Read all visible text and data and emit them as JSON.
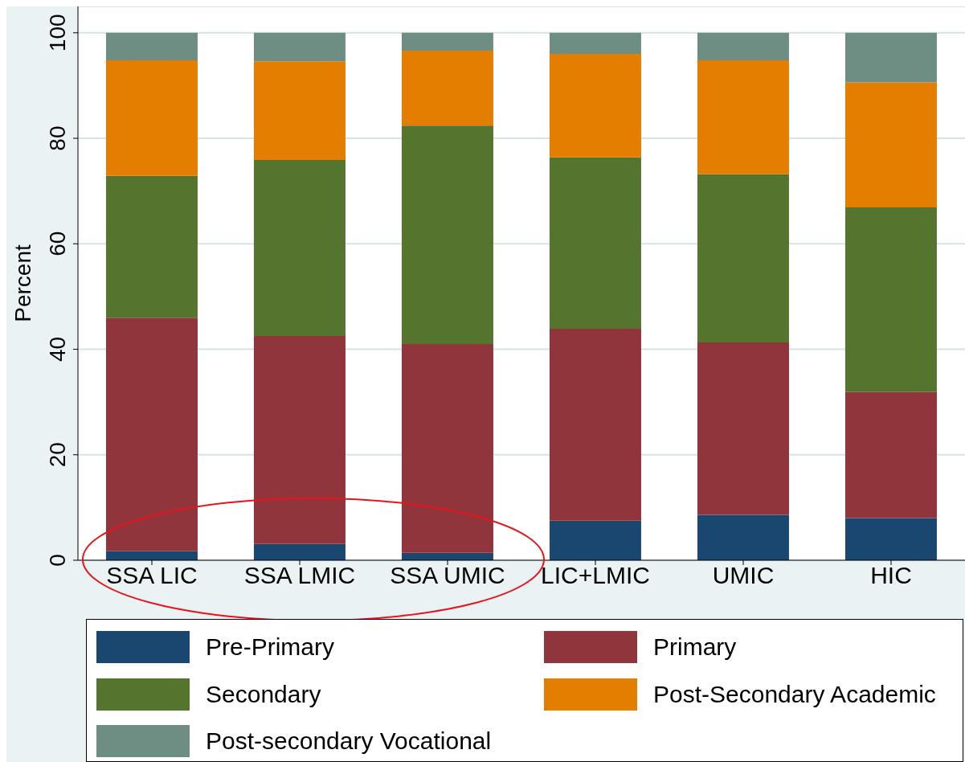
{
  "chart_data": {
    "type": "bar",
    "stacked": true,
    "ylabel": "Percent",
    "categories": [
      "SSA LIC",
      "SSA LMIC",
      "SSA UMIC",
      "LIC+LMIC",
      "UMIC",
      "HIC"
    ],
    "series": [
      {
        "name": "Pre-Primary",
        "color": "#1a476f",
        "values": [
          1.7,
          3.1,
          1.4,
          7.5,
          8.6,
          8.0
        ]
      },
      {
        "name": "Primary",
        "color": "#90353b",
        "values": [
          44.3,
          39.4,
          39.6,
          36.4,
          32.7,
          23.9
        ]
      },
      {
        "name": "Secondary",
        "color": "#55752f",
        "values": [
          26.9,
          33.4,
          41.4,
          32.5,
          31.9,
          35.0
        ]
      },
      {
        "name": "Post-Secondary Academic",
        "color": "#e37e00",
        "values": [
          21.9,
          18.7,
          14.2,
          19.6,
          21.6,
          23.7
        ]
      },
      {
        "name": "Post-secondary Vocational",
        "color": "#6e8e84",
        "values": [
          5.2,
          5.4,
          3.4,
          4.0,
          5.2,
          9.4
        ]
      }
    ],
    "ylim": [
      0,
      105
    ],
    "yticks": [
      0,
      20,
      40,
      60,
      80,
      100
    ],
    "grid": "y",
    "legend": "bottom"
  }
}
